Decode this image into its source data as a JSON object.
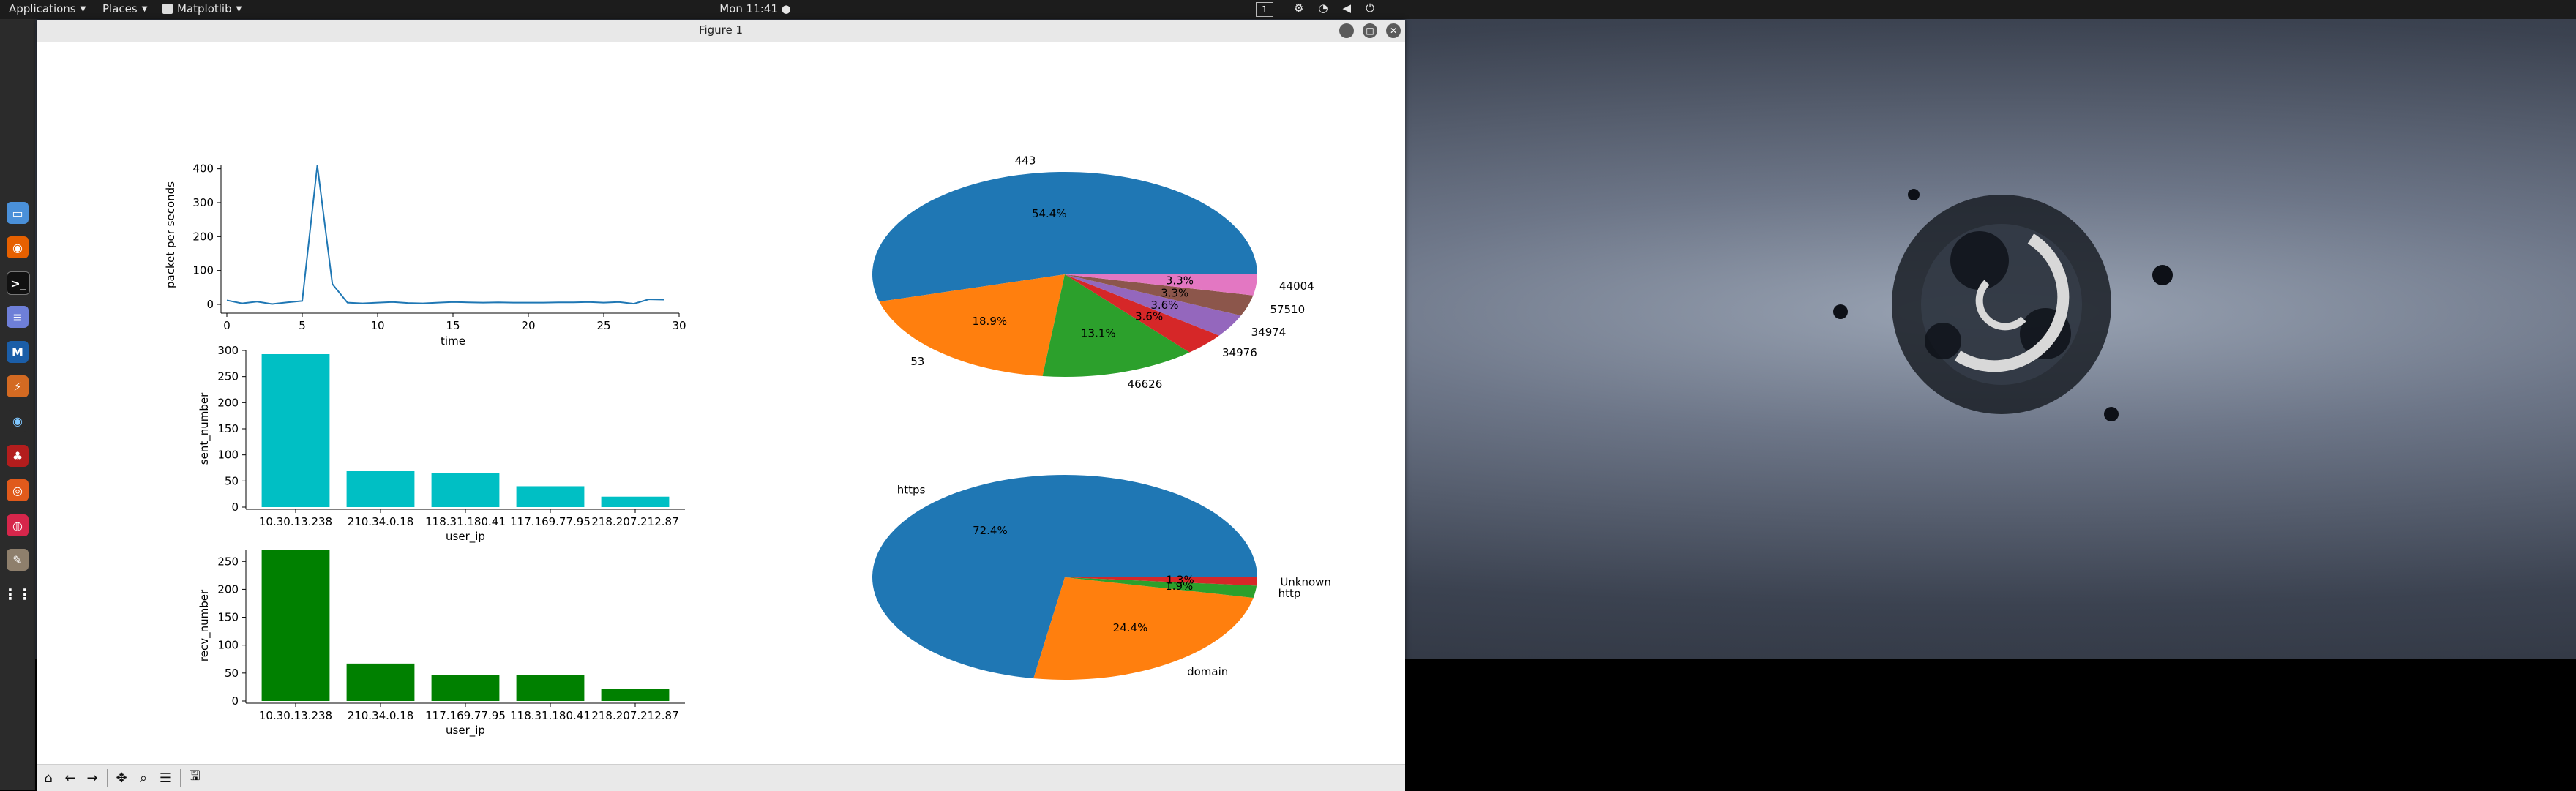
{
  "topbar": {
    "applications": "Applications",
    "places": "Places",
    "app_name": "Matplotlib",
    "clock": "Mon 11:41",
    "workspace": "1"
  },
  "window": {
    "title": "Figure 1"
  },
  "icons": {
    "dock": [
      "files-icon",
      "firefox-icon",
      "terminal-icon",
      "text-editor-icon",
      "metasploit-icon",
      "burpsuite-icon",
      "eye-icon",
      "cherrytree-icon",
      "maltego-icon",
      "armitage-icon",
      "gimp-icon",
      "show-apps-icon"
    ],
    "toolbar": [
      "home-icon",
      "back-icon",
      "forward-icon",
      "pan-icon",
      "zoom-icon",
      "configure-icon",
      "save-icon"
    ]
  },
  "colors": {
    "cyan_bars": "#00bfc4",
    "green_bars": "#008000",
    "line": "#1f77b4",
    "pie": [
      "#1f77b4",
      "#ff7f0e",
      "#2ca02c",
      "#d62728",
      "#9467bd",
      "#8c564b",
      "#e377c2"
    ]
  },
  "chart_data": [
    {
      "type": "line",
      "x": [
        0,
        1,
        2,
        3,
        4,
        5,
        6,
        7,
        8,
        9,
        10,
        11,
        12,
        13,
        14,
        15,
        16,
        17,
        18,
        19,
        20,
        21,
        22,
        23,
        24,
        25,
        26,
        27,
        28,
        29
      ],
      "values": [
        12,
        3,
        8,
        1,
        6,
        10,
        410,
        60,
        5,
        3,
        5,
        7,
        4,
        3,
        5,
        7,
        6,
        5,
        6,
        5,
        5,
        5,
        6,
        6,
        7,
        5,
        7,
        2,
        15,
        14
      ],
      "xlabel": "time",
      "ylabel": "packet per seconds",
      "xticks": [
        "0",
        "5",
        "10",
        "15",
        "20",
        "25",
        "30"
      ],
      "yticks": [
        "0",
        "100",
        "200",
        "300",
        "400"
      ],
      "xlim": [
        0,
        30
      ],
      "ylim": [
        0,
        410
      ]
    },
    {
      "type": "bar",
      "categories": [
        "10.30.13.238",
        "210.34.0.18",
        "118.31.180.41",
        "117.169.77.95",
        "218.207.212.87"
      ],
      "values": [
        293,
        70,
        65,
        40,
        20
      ],
      "xlabel": "user_ip",
      "ylabel": "sent_number",
      "yticks": [
        "0",
        "50",
        "100",
        "150",
        "200",
        "250",
        "300"
      ],
      "ylim": [
        0,
        300
      ]
    },
    {
      "type": "bar",
      "categories": [
        "10.30.13.238",
        "210.34.0.18",
        "117.169.77.95",
        "118.31.180.41",
        "218.207.212.87"
      ],
      "values": [
        270,
        67,
        47,
        47,
        22
      ],
      "xlabel": "user_ip",
      "ylabel": "recv_number",
      "yticks": [
        "0",
        "50",
        "100",
        "150",
        "200",
        "250"
      ],
      "ylim": [
        0,
        270
      ]
    },
    {
      "type": "pie",
      "labels": [
        "443",
        "53",
        "46626",
        "34976",
        "34974",
        "57510",
        "44004"
      ],
      "values": [
        54.4,
        18.9,
        13.1,
        3.6,
        3.6,
        3.3,
        3.3
      ],
      "pct_labels": [
        "54.4%",
        "18.9%",
        "13.1%",
        "3.6%",
        "3.6%",
        "3.3%",
        "3.3%"
      ]
    },
    {
      "type": "pie",
      "labels": [
        "https",
        "domain",
        "http",
        "Unknown"
      ],
      "values": [
        72.4,
        24.4,
        1.9,
        1.3
      ],
      "pct_labels": [
        "72.4%",
        "24.4%",
        "1.9%",
        "1.3%"
      ]
    }
  ]
}
